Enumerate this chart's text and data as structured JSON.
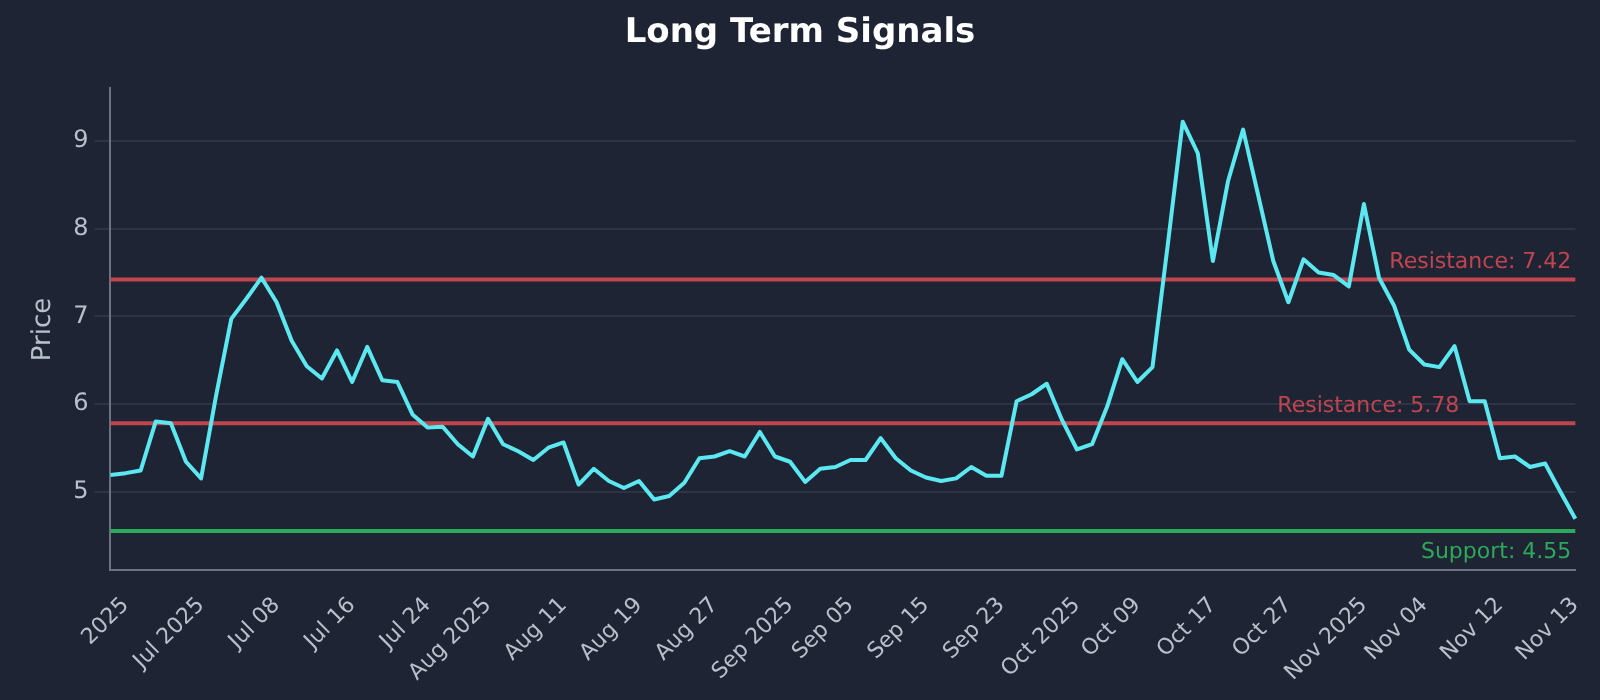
{
  "chart_data": {
    "type": "line",
    "title": "Long Term Signals",
    "ylabel": "Price",
    "categories": [
      null,
      "2025",
      null,
      null,
      null,
      null,
      "Jul 2025",
      null,
      null,
      null,
      null,
      "Jul 08",
      null,
      null,
      null,
      null,
      "Jul 16",
      null,
      null,
      null,
      null,
      "Jul 24",
      null,
      null,
      null,
      "Aug 2025",
      null,
      null,
      null,
      null,
      "Aug 11",
      null,
      null,
      null,
      null,
      "Aug 19",
      null,
      null,
      null,
      null,
      "Aug 27",
      null,
      null,
      null,
      null,
      "Sep 2025",
      null,
      null,
      null,
      "Sep 05",
      null,
      null,
      null,
      null,
      "Sep 15",
      null,
      null,
      null,
      null,
      "Sep 23",
      null,
      null,
      null,
      null,
      "Oct 2025",
      null,
      null,
      null,
      "Oct 09",
      null,
      null,
      null,
      null,
      "Oct 17",
      null,
      null,
      null,
      null,
      "Oct 27",
      null,
      null,
      null,
      null,
      "Nov 2025",
      null,
      null,
      null,
      "Nov 04",
      null,
      null,
      null,
      null,
      "Nov 12",
      null,
      null,
      null,
      null,
      "Nov 13"
    ],
    "series": [
      {
        "color": "#5ce8f0",
        "values": [
          5.19,
          5.21,
          5.24,
          5.8,
          5.78,
          5.34,
          5.15,
          6.1,
          6.97,
          7.2,
          7.44,
          7.16,
          6.72,
          6.43,
          6.29,
          6.61,
          6.25,
          6.65,
          6.27,
          6.25,
          5.88,
          5.73,
          5.74,
          5.54,
          5.4,
          5.83,
          5.54,
          5.46,
          5.36,
          5.5,
          5.56,
          5.08,
          5.26,
          5.12,
          5.04,
          5.12,
          4.91,
          4.95,
          5.1,
          5.38,
          5.4,
          5.46,
          5.4,
          5.68,
          5.4,
          5.34,
          5.11,
          5.26,
          5.28,
          5.36,
          5.36,
          5.61,
          5.38,
          5.24,
          5.16,
          5.12,
          5.15,
          5.28,
          5.18,
          5.18,
          6.03,
          6.11,
          6.23,
          5.82,
          5.48,
          5.54,
          5.97,
          6.51,
          6.25,
          6.42,
          7.8,
          9.22,
          8.86,
          7.63,
          8.54,
          9.13,
          8.38,
          7.63,
          7.16,
          7.65,
          7.5,
          7.47,
          7.34,
          8.28,
          7.44,
          7.12,
          6.62,
          6.45,
          6.42,
          6.66,
          6.03,
          6.03,
          5.38,
          5.4,
          5.28,
          5.32,
          5.0,
          4.69
        ]
      }
    ],
    "ylim": [
      4.1,
      9.6
    ],
    "yticks": [
      5,
      6,
      7,
      8,
      9
    ],
    "grid": "y",
    "marker": "none",
    "line_style": "solid",
    "ref_lines": [
      {
        "axis": "y",
        "value": 7.42,
        "label": "Resistance: 7.42",
        "color": "#c0454f"
      },
      {
        "axis": "y",
        "value": 5.78,
        "label": "Resistance: 5.78",
        "color": "#c0454f"
      },
      {
        "axis": "y",
        "value": 4.55,
        "label": "Support: 4.55",
        "color": "#2ea85a"
      }
    ]
  }
}
